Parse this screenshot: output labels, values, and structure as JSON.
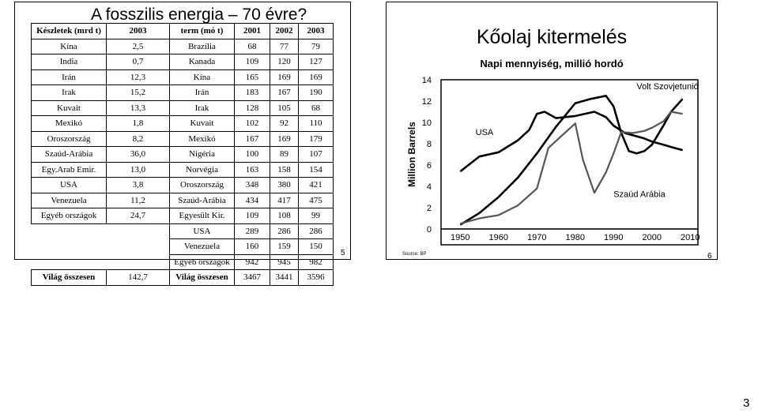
{
  "left_slide": {
    "title": "A fosszilis energia – 70 évre?",
    "reserves_header": [
      "Készletek (mrd t)",
      "2003"
    ],
    "production_header": [
      "term (mó t)",
      "2001",
      "2002",
      "2003"
    ],
    "rows": [
      {
        "r_country": "Kína",
        "r_value": "2,5",
        "p_country": "Brazília",
        "p2001": "68",
        "p2002": "77",
        "p2003": "79"
      },
      {
        "r_country": "India",
        "r_value": "0,7",
        "p_country": "Kanada",
        "p2001": "109",
        "p2002": "120",
        "p2003": "127"
      },
      {
        "r_country": "Irán",
        "r_value": "12,3",
        "p_country": "Kína",
        "p2001": "165",
        "p2002": "169",
        "p2003": "169"
      },
      {
        "r_country": "Irak",
        "r_value": "15,2",
        "p_country": "Irán",
        "p2001": "183",
        "p2002": "167",
        "p2003": "190"
      },
      {
        "r_country": "Kuvait",
        "r_value": "13,3",
        "p_country": "Irak",
        "p2001": "128",
        "p2002": "105",
        "p2003": "68"
      },
      {
        "r_country": "Mexikó",
        "r_value": "1,8",
        "p_country": "Kuvait",
        "p2001": "102",
        "p2002": "92",
        "p2003": "110"
      },
      {
        "r_country": "Oroszország",
        "r_value": "8,2",
        "p_country": "Mexikó",
        "p2001": "167",
        "p2002": "169",
        "p2003": "179"
      },
      {
        "r_country": "Szaúd-Arábia",
        "r_value": "36,0",
        "p_country": "Nigéria",
        "p2001": "100",
        "p2002": "89",
        "p2003": "107"
      },
      {
        "r_country": "Egy.Arab Emir.",
        "r_value": "13,0",
        "p_country": "Norvégia",
        "p2001": "163",
        "p2002": "158",
        "p2003": "154"
      },
      {
        "r_country": "USA",
        "r_value": "3,8",
        "p_country": "Oroszország",
        "p2001": "348",
        "p2002": "380",
        "p2003": "421"
      },
      {
        "r_country": "Venezuela",
        "r_value": "11,2",
        "p_country": "Szaúd-Arábia",
        "p2001": "434",
        "p2002": "417",
        "p2003": "475"
      },
      {
        "r_country": "Egyéb országok",
        "r_value": "24,7",
        "p_country": "Egyesült Kir.",
        "p2001": "109",
        "p2002": "108",
        "p2003": "99"
      },
      {
        "r_country": "",
        "r_value": "",
        "p_country": "USA",
        "p2001": "289",
        "p2002": "286",
        "p2003": "286"
      },
      {
        "r_country": "",
        "r_value": "",
        "p_country": "Venezuela",
        "p2001": "160",
        "p2002": "159",
        "p2003": "150"
      },
      {
        "r_country": "",
        "r_value": "",
        "p_country": "Egyéb országok",
        "p2001": "942",
        "p2002": "945",
        "p2003": "982"
      }
    ],
    "total": {
      "r_label": "Világ összesen",
      "r_value": "142,7",
      "p_label": "Világ összesen",
      "p2001": "3467",
      "p2002": "3441",
      "p2003": "3596"
    },
    "page_number": "5"
  },
  "right_slide": {
    "title": "Kőolaj kitermelés",
    "subtitle": "Napi mennyiség, millió hordó",
    "source": "Source: BP",
    "page_number": "6"
  },
  "chart_data": {
    "type": "line",
    "title": "",
    "xlabel": "",
    "ylabel": "Million Barrels",
    "x_ticks": [
      "1950",
      "1960",
      "1970",
      "1980",
      "1990",
      "2000",
      "2010"
    ],
    "y_ticks": [
      "0",
      "2",
      "4",
      "6",
      "8",
      "10",
      "12",
      "14"
    ],
    "xlim": [
      1945,
      2012
    ],
    "ylim": [
      0,
      14
    ],
    "grid": false,
    "series": [
      {
        "name": "USA",
        "color": "#000000",
        "points": [
          [
            1950,
            5.4
          ],
          [
            1955,
            6.8
          ],
          [
            1960,
            7.2
          ],
          [
            1965,
            8.3
          ],
          [
            1968,
            9.3
          ],
          [
            1970,
            10.8
          ],
          [
            1972,
            11.0
          ],
          [
            1975,
            10.4
          ],
          [
            1980,
            10.6
          ],
          [
            1985,
            11.0
          ],
          [
            1988,
            10.5
          ],
          [
            1990,
            9.7
          ],
          [
            1993,
            9.0
          ],
          [
            1995,
            8.8
          ],
          [
            1998,
            8.5
          ],
          [
            2000,
            8.2
          ],
          [
            2003,
            7.9
          ],
          [
            2005,
            7.7
          ],
          [
            2008,
            7.4
          ]
        ]
      },
      {
        "name": "Volt Szovjetunió",
        "color": "#000000",
        "points": [
          [
            1950,
            0.4
          ],
          [
            1955,
            1.5
          ],
          [
            1960,
            3.0
          ],
          [
            1965,
            4.8
          ],
          [
            1970,
            7.1
          ],
          [
            1975,
            9.6
          ],
          [
            1980,
            11.8
          ],
          [
            1984,
            12.2
          ],
          [
            1988,
            12.5
          ],
          [
            1990,
            11.5
          ],
          [
            1992,
            9.0
          ],
          [
            1994,
            7.3
          ],
          [
            1996,
            7.1
          ],
          [
            1998,
            7.3
          ],
          [
            2000,
            7.9
          ],
          [
            2003,
            9.7
          ],
          [
            2005,
            11.0
          ],
          [
            2008,
            12.2
          ]
        ]
      },
      {
        "name": "Szaúd Arábia",
        "color": "#555555",
        "points": [
          [
            1950,
            0.5
          ],
          [
            1955,
            1.0
          ],
          [
            1960,
            1.3
          ],
          [
            1965,
            2.2
          ],
          [
            1970,
            3.8
          ],
          [
            1973,
            7.6
          ],
          [
            1976,
            8.6
          ],
          [
            1980,
            9.9
          ],
          [
            1982,
            6.5
          ],
          [
            1985,
            3.4
          ],
          [
            1988,
            5.3
          ],
          [
            1990,
            7.1
          ],
          [
            1992,
            9.1
          ],
          [
            1995,
            9.0
          ],
          [
            1998,
            9.2
          ],
          [
            2000,
            9.5
          ],
          [
            2003,
            10.1
          ],
          [
            2005,
            11.0
          ],
          [
            2008,
            10.8
          ]
        ]
      }
    ],
    "annotations": [
      {
        "text": "Volt Szovjetunió",
        "near": "top-right"
      },
      {
        "text": "USA",
        "near": "upper-left"
      },
      {
        "text": "Szaúd Arábia",
        "near": "lower-right"
      }
    ]
  },
  "page_number_bottom": "3"
}
